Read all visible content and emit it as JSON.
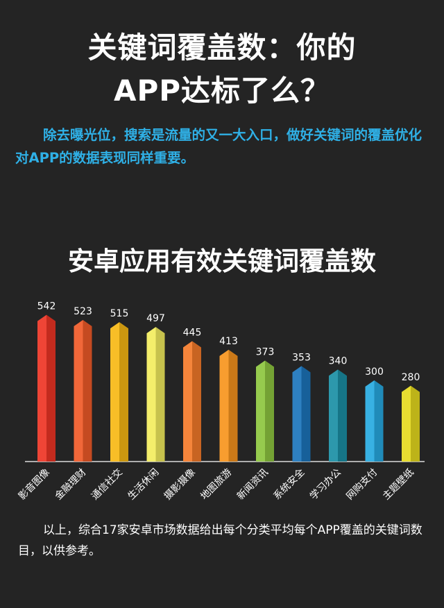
{
  "header": {
    "title_line1": "关键词覆盖数：你的",
    "title_line2": "APP达标了么？"
  },
  "intro": {
    "text": "除去曝光位，搜索是流量的又一大入口，做好关键词的覆盖优化对APP的数据表现同样重要。"
  },
  "chart_data": {
    "type": "bar",
    "title": "安卓应用有效关键词覆盖数",
    "categories": [
      "影音图像",
      "金融理财",
      "通信社交",
      "生活休闲",
      "摄影摄像",
      "地图旅游",
      "新闻资讯",
      "系统安全",
      "学习办公",
      "网购支付",
      "主题壁纸"
    ],
    "values": [
      542,
      523,
      515,
      497,
      445,
      413,
      373,
      353,
      340,
      300,
      280
    ],
    "colors": [
      "#ee3524",
      "#f05a28",
      "#f7b814",
      "#f3ec5e",
      "#f47a2a",
      "#f7941d",
      "#8dc63f",
      "#1c75bc",
      "#1b8fa5",
      "#27aae1",
      "#e6da1f"
    ],
    "ylim": [
      0,
      560
    ],
    "grid": false,
    "legend": "none"
  },
  "footer": {
    "note": "以上，综合17家安卓市场数据给出每个分类平均每个APP覆盖的关键词数目，以供参考。"
  }
}
